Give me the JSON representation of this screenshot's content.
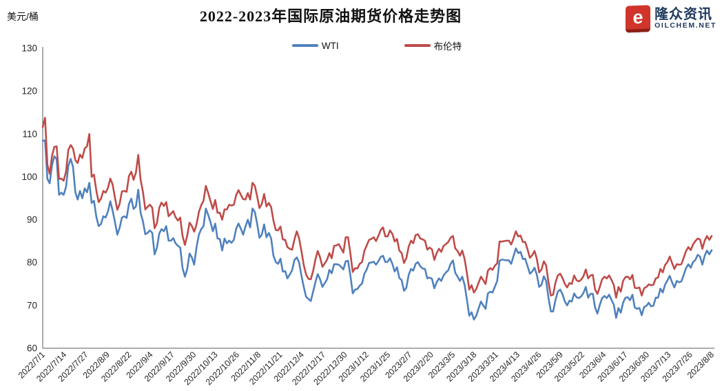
{
  "header": {
    "unit_label": "美元/桶",
    "title": "2022-2023年国际原油期货价格走势图"
  },
  "logo": {
    "mark": "e",
    "name": "隆众资讯",
    "domain": "OILCHEM.NET"
  },
  "legend": [
    {
      "label": "WTI",
      "color": "#4F81BD"
    },
    {
      "label": "布伦特",
      "color": "#BE4B48"
    }
  ],
  "chart_data": {
    "type": "line",
    "title": "2022-2023年国际原油期货价格走势图",
    "xlabel": "",
    "ylabel": "美元/桶",
    "ylim": [
      60,
      130
    ],
    "y_ticks": [
      60,
      70,
      80,
      90,
      100,
      110,
      120,
      130
    ],
    "grid": false,
    "legend_position": "top-center",
    "axis_color": "#595959",
    "tick_label_color": "#262626",
    "x_tick_labels": [
      "2022/7/1",
      "2022/7/14",
      "2022/7/27",
      "2022/8/9",
      "2022/8/22",
      "2022/9/4",
      "2022/9/17",
      "2022/9/30",
      "2022/10/13",
      "2022/10/26",
      "2022/11/8",
      "2022/11/21",
      "2022/12/4",
      "2022/12/17",
      "2022/12/30",
      "2023/1/12",
      "2023/1/25",
      "2023/2/7",
      "2023/2/20",
      "2023/3/5",
      "2023/3/18",
      "2023/3/31",
      "2023/4/13",
      "2023/4/26",
      "2023/5/9",
      "2023/5/22",
      "2023/6/4",
      "2023/6/17",
      "2023/6/30",
      "2023/7/13",
      "2023/7/26",
      "2023/8/8"
    ],
    "series": [
      {
        "name": "WTI",
        "color": "#4F81BD",
        "values": [
          108.4,
          108.5,
          99.5,
          98.5,
          102.7,
          104.8,
          104.1,
          95.8,
          96.3,
          95.8,
          97.6,
          102.6,
          104.2,
          102.3,
          96.4,
          94.7,
          96.7,
          95.0,
          97.3,
          96.4,
          98.6,
          93.9,
          94.4,
          90.7,
          88.5,
          89.0,
          90.8,
          90.5,
          91.9,
          94.3,
          92.1,
          89.4,
          86.5,
          88.1,
          90.5,
          90.8,
          90.4,
          93.7,
          94.9,
          92.5,
          93.1,
          97.0,
          91.6,
          89.6,
          86.6,
          86.9,
          87.5,
          86.9,
          81.9,
          83.5,
          86.8,
          87.8,
          87.3,
          88.5,
          85.1,
          85.1,
          85.7,
          84.5,
          83.9,
          83.5,
          78.7,
          76.7,
          78.5,
          82.1,
          81.2,
          79.5,
          83.6,
          86.5,
          87.8,
          88.5,
          92.6,
          91.1,
          89.4,
          87.3,
          89.1,
          85.6,
          85.5,
          82.8,
          85.6,
          84.5,
          85.1,
          84.6,
          85.3,
          87.9,
          89.1,
          87.9,
          86.5,
          88.4,
          90.0,
          88.2,
          92.6,
          91.8,
          89.0,
          85.8,
          86.5,
          88.9,
          85.9,
          86.9,
          85.6,
          81.6,
          80.1,
          79.7,
          80.9,
          77.9,
          78.0,
          76.3,
          77.2,
          78.2,
          80.6,
          81.2,
          80.0,
          77.0,
          74.3,
          72.0,
          71.5,
          71.0,
          73.2,
          75.4,
          77.3,
          76.1,
          74.3,
          75.2,
          76.1,
          78.3,
          77.5,
          79.6,
          79.6,
          79.5,
          79.0,
          78.4,
          80.3,
          80.4,
          77.0,
          72.8,
          73.7,
          73.8,
          74.6,
          75.1,
          77.4,
          78.4,
          79.9,
          80.0,
          80.2,
          79.5,
          80.3,
          81.3,
          81.6,
          80.1,
          80.2,
          81.0,
          79.7,
          77.9,
          78.9,
          76.4,
          75.9,
          73.4,
          74.1,
          77.1,
          78.5,
          78.1,
          79.7,
          80.1,
          79.1,
          78.6,
          78.5,
          76.3,
          76.5,
          76.2,
          74.0,
          75.4,
          76.3,
          75.7,
          77.0,
          77.7,
          78.2,
          79.7,
          80.5,
          77.6,
          76.7,
          75.7,
          76.7,
          74.8,
          71.3,
          67.6,
          68.4,
          66.7,
          67.6,
          69.3,
          70.9,
          70.0,
          69.2,
          72.8,
          73.2,
          73.0,
          74.4,
          75.7,
          80.4,
          80.7,
          80.6,
          80.5,
          80.5,
          79.7,
          81.5,
          83.3,
          82.2,
          82.5,
          80.8,
          80.9,
          79.2,
          77.4,
          77.9,
          78.8,
          77.1,
          74.3,
          74.8,
          76.8,
          75.7,
          71.7,
          68.6,
          68.6,
          71.3,
          73.2,
          73.7,
          72.6,
          70.9,
          70.0,
          71.1,
          70.9,
          72.8,
          71.9,
          71.7,
          72.1,
          72.9,
          74.3,
          71.8,
          72.7,
          72.7,
          69.5,
          68.1,
          70.1,
          71.7,
          72.2,
          71.7,
          72.5,
          71.3,
          70.2,
          67.1,
          69.4,
          68.3,
          70.6,
          71.8,
          71.9,
          71.2,
          72.5,
          69.5,
          69.2,
          69.4,
          67.7,
          69.6,
          69.9,
          70.6,
          69.8,
          69.9,
          71.8,
          71.8,
          73.9,
          73.0,
          74.8,
          75.8,
          76.9,
          75.4,
          74.2,
          75.7,
          75.4,
          75.6,
          77.1,
          78.7,
          79.6,
          78.8,
          80.1,
          80.6,
          81.8,
          81.4,
          79.5,
          81.6,
          82.8,
          81.9,
          82.9
        ]
      },
      {
        "name": "布伦特",
        "color": "#BE4B48",
        "values": [
          111.6,
          113.8,
          102.8,
          100.7,
          104.9,
          107.0,
          107.1,
          99.5,
          99.6,
          99.1,
          101.2,
          106.3,
          107.4,
          106.6,
          103.9,
          103.2,
          105.2,
          104.4,
          106.6,
          107.1,
          110.0,
          100.0,
          100.5,
          96.8,
          94.1,
          94.9,
          96.7,
          96.3,
          97.4,
          99.6,
          98.2,
          95.1,
          92.3,
          93.7,
          96.6,
          96.7,
          96.5,
          100.2,
          101.2,
          99.3,
          101.0,
          105.1,
          99.3,
          96.5,
          92.4,
          93.0,
          93.5,
          92.8,
          88.0,
          89.2,
          92.8,
          94.0,
          93.2,
          94.1,
          90.8,
          91.4,
          92.0,
          90.6,
          89.8,
          90.5,
          86.2,
          84.1,
          86.3,
          89.3,
          88.5,
          87.2,
          88.9,
          91.8,
          93.4,
          94.4,
          97.9,
          96.2,
          94.3,
          92.5,
          94.6,
          91.6,
          91.6,
          90.0,
          92.4,
          92.4,
          93.5,
          93.3,
          93.5,
          95.7,
          96.9,
          95.8,
          94.8,
          94.7,
          96.2,
          94.7,
          98.6,
          97.9,
          95.4,
          92.7,
          93.7,
          96.0,
          93.1,
          93.9,
          92.9,
          89.8,
          87.6,
          87.5,
          88.4,
          85.4,
          85.3,
          83.6,
          83.2,
          83.0,
          85.4,
          87.3,
          85.6,
          82.7,
          79.4,
          77.2,
          76.2,
          76.1,
          78.0,
          80.7,
          82.7,
          81.2,
          79.0,
          79.8,
          80.7,
          82.2,
          81.0,
          83.9,
          84.0,
          84.3,
          83.3,
          82.3,
          85.9,
          85.9,
          82.1,
          77.8,
          78.7,
          78.6,
          79.7,
          80.1,
          82.7,
          84.0,
          85.3,
          85.5,
          85.9,
          85.0,
          86.2,
          87.6,
          88.2,
          86.1,
          86.1,
          87.5,
          86.7,
          84.9,
          85.5,
          82.8,
          82.2,
          79.9,
          81.0,
          83.7,
          85.1,
          84.5,
          86.4,
          86.6,
          85.6,
          85.4,
          85.1,
          83.0,
          83.5,
          83.1,
          80.6,
          82.2,
          83.2,
          82.5,
          83.9,
          84.3,
          84.8,
          85.8,
          86.2,
          83.3,
          82.7,
          81.6,
          82.8,
          80.8,
          77.5,
          73.7,
          74.7,
          73.0,
          73.8,
          75.3,
          76.7,
          75.9,
          75.0,
          78.1,
          78.7,
          78.3,
          79.3,
          79.8,
          84.9,
          84.9,
          85.0,
          85.1,
          85.1,
          84.2,
          85.6,
          87.3,
          86.1,
          86.3,
          84.8,
          84.8,
          83.1,
          81.1,
          81.7,
          82.7,
          80.8,
          77.7,
          78.4,
          80.3,
          79.3,
          75.3,
          72.3,
          72.5,
          75.3,
          77.0,
          77.4,
          76.4,
          75.0,
          74.2,
          75.2,
          75.0,
          77.0,
          75.9,
          75.6,
          76.0,
          76.8,
          78.4,
          76.3,
          77.0,
          77.1,
          73.7,
          72.7,
          74.3,
          76.1,
          76.7,
          76.3,
          77.0,
          76.0,
          74.8,
          71.8,
          74.3,
          73.2,
          75.7,
          76.6,
          76.7,
          76.1,
          77.1,
          74.1,
          74.0,
          74.2,
          72.3,
          74.0,
          74.3,
          74.9,
          74.7,
          74.8,
          76.3,
          76.5,
          78.5,
          77.7,
          79.4,
          80.1,
          81.4,
          79.9,
          78.5,
          79.6,
          79.5,
          79.6,
          81.1,
          82.7,
          83.6,
          82.9,
          84.2,
          85.0,
          85.6,
          85.4,
          83.2,
          85.1,
          86.2,
          85.3,
          86.2
        ]
      }
    ]
  }
}
